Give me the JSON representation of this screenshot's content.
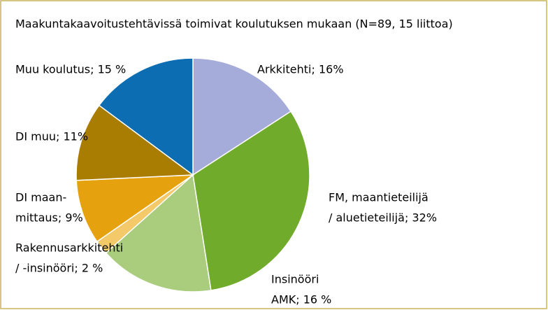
{
  "chart_data": {
    "type": "pie",
    "title": "Maakuntakaavoitustehtävissä toimivat koulutuksen mukaan (N=89, 15 liittoa)",
    "values": [
      16,
      32,
      16,
      2,
      9,
      11,
      15
    ],
    "value_labels": [
      [
        "Arkkitehti; 16%"
      ],
      [
        "FM, maantieteilijä",
        "/ aluetieteilijä; 32%"
      ],
      [
        "Insinööri",
        "AMK; 16 %"
      ],
      [
        "Rakennusarkkitehti",
        "/ -insinööri; 2 %"
      ],
      [
        "DI maan-",
        "mittaus; 9%"
      ],
      [
        "DI muu; 11%"
      ],
      [
        "Muu koulutus; 15 %"
      ]
    ],
    "colors": [
      "#a5acd9",
      "#70ab2c",
      "#a9cc7d",
      "#f3c96a",
      "#e5a20e",
      "#a97c02",
      "#0c6db2"
    ]
  }
}
